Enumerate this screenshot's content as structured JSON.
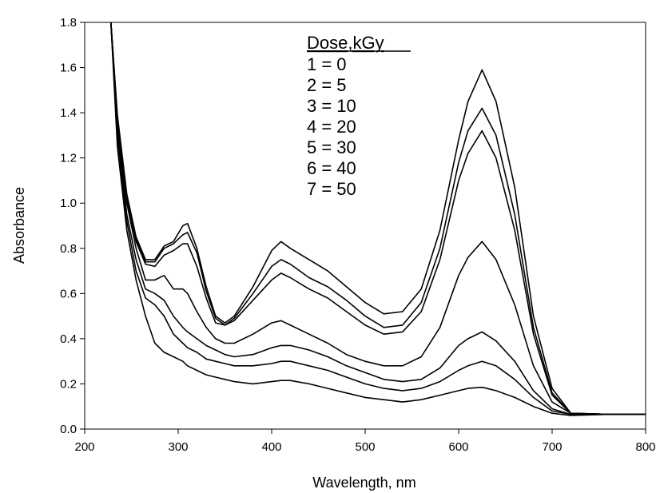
{
  "chart_data": {
    "type": "line",
    "xlabel": "Wavelength, nm",
    "ylabel": "Absorbance",
    "xlim": [
      200,
      800
    ],
    "ylim": [
      0.0,
      1.8
    ],
    "xticks": [
      "200",
      "300",
      "400",
      "500",
      "600",
      "700",
      "800"
    ],
    "yticks": [
      "0.0",
      "0.2",
      "0.4",
      "0.6",
      "0.8",
      "1.0",
      "1.2",
      "1.4",
      "1.6",
      "1.8"
    ],
    "grid": false,
    "legend": {
      "title": "Dose,kGy",
      "entries": [
        "1 = 0",
        "2 = 5",
        "3 = 10",
        "4 = 20",
        "5 = 30",
        "6 = 40",
        "7 = 50"
      ],
      "placement": "top-center"
    },
    "line_color": "#000000",
    "x": [
      228,
      235,
      245,
      255,
      265,
      275,
      285,
      295,
      305,
      310,
      320,
      330,
      340,
      350,
      360,
      380,
      400,
      410,
      420,
      440,
      460,
      480,
      500,
      520,
      540,
      560,
      580,
      600,
      610,
      625,
      640,
      660,
      680,
      700,
      720,
      760,
      800
    ],
    "series": [
      {
        "values": [
          1.8,
          1.25,
          0.88,
          0.66,
          0.5,
          0.38,
          0.34,
          0.32,
          0.3,
          0.28,
          0.26,
          0.24,
          0.23,
          0.22,
          0.21,
          0.2,
          0.21,
          0.215,
          0.215,
          0.2,
          0.18,
          0.16,
          0.14,
          0.13,
          0.12,
          0.13,
          0.15,
          0.17,
          0.18,
          0.185,
          0.17,
          0.14,
          0.1,
          0.07,
          0.06,
          0.065,
          0.065
        ]
      },
      {
        "values": [
          1.8,
          1.3,
          0.92,
          0.7,
          0.58,
          0.55,
          0.5,
          0.42,
          0.38,
          0.36,
          0.34,
          0.31,
          0.3,
          0.29,
          0.28,
          0.28,
          0.29,
          0.3,
          0.3,
          0.28,
          0.26,
          0.23,
          0.2,
          0.18,
          0.17,
          0.18,
          0.21,
          0.26,
          0.28,
          0.3,
          0.28,
          0.22,
          0.14,
          0.08,
          0.065,
          0.065,
          0.065
        ]
      },
      {
        "values": [
          1.8,
          1.32,
          0.95,
          0.75,
          0.62,
          0.6,
          0.57,
          0.5,
          0.45,
          0.43,
          0.4,
          0.37,
          0.35,
          0.33,
          0.32,
          0.33,
          0.36,
          0.37,
          0.37,
          0.35,
          0.32,
          0.28,
          0.25,
          0.22,
          0.21,
          0.22,
          0.27,
          0.37,
          0.4,
          0.43,
          0.39,
          0.3,
          0.17,
          0.09,
          0.065,
          0.065,
          0.065
        ]
      },
      {
        "values": [
          1.8,
          1.35,
          1.0,
          0.8,
          0.66,
          0.66,
          0.68,
          0.62,
          0.62,
          0.6,
          0.52,
          0.45,
          0.4,
          0.38,
          0.38,
          0.42,
          0.47,
          0.48,
          0.46,
          0.42,
          0.38,
          0.33,
          0.3,
          0.28,
          0.28,
          0.32,
          0.45,
          0.68,
          0.76,
          0.83,
          0.75,
          0.55,
          0.28,
          0.12,
          0.07,
          0.065,
          0.065
        ]
      },
      {
        "values": [
          1.8,
          1.37,
          1.02,
          0.83,
          0.73,
          0.72,
          0.77,
          0.79,
          0.82,
          0.82,
          0.72,
          0.58,
          0.47,
          0.46,
          0.48,
          0.57,
          0.66,
          0.69,
          0.67,
          0.62,
          0.58,
          0.52,
          0.46,
          0.42,
          0.43,
          0.52,
          0.75,
          1.1,
          1.22,
          1.32,
          1.2,
          0.88,
          0.42,
          0.15,
          0.07,
          0.065,
          0.065
        ]
      },
      {
        "values": [
          1.8,
          1.38,
          1.03,
          0.84,
          0.74,
          0.74,
          0.8,
          0.82,
          0.86,
          0.87,
          0.78,
          0.61,
          0.49,
          0.46,
          0.49,
          0.6,
          0.72,
          0.75,
          0.73,
          0.67,
          0.63,
          0.57,
          0.5,
          0.45,
          0.46,
          0.56,
          0.8,
          1.18,
          1.32,
          1.42,
          1.3,
          0.95,
          0.45,
          0.16,
          0.07,
          0.065,
          0.065
        ]
      },
      {
        "values": [
          1.8,
          1.39,
          1.04,
          0.85,
          0.75,
          0.75,
          0.81,
          0.83,
          0.9,
          0.91,
          0.8,
          0.63,
          0.5,
          0.47,
          0.5,
          0.63,
          0.79,
          0.83,
          0.8,
          0.75,
          0.7,
          0.63,
          0.56,
          0.51,
          0.52,
          0.62,
          0.88,
          1.28,
          1.45,
          1.59,
          1.45,
          1.07,
          0.5,
          0.18,
          0.07,
          0.065,
          0.065
        ]
      }
    ]
  }
}
